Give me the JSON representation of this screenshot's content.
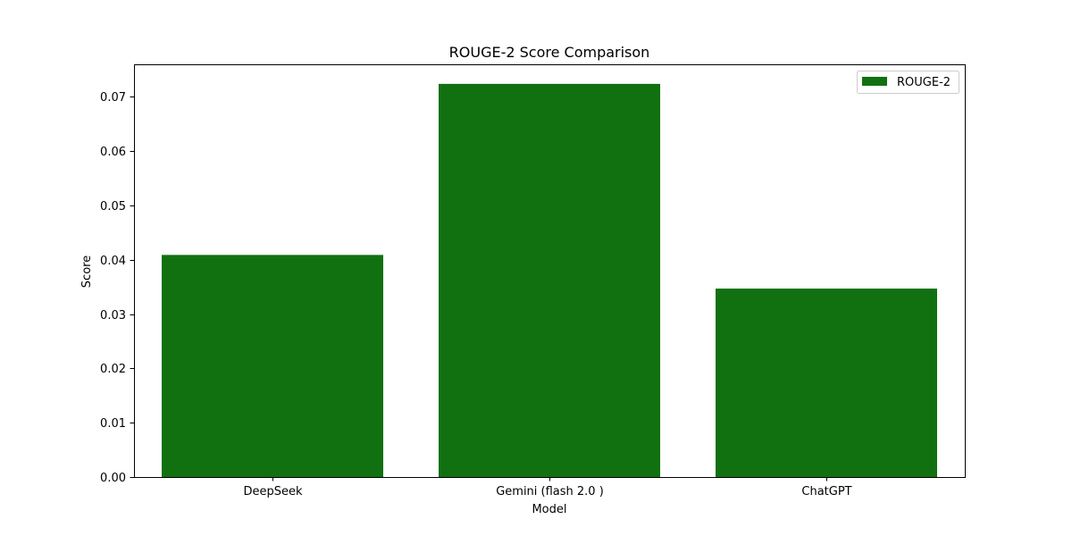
{
  "chart_data": {
    "type": "bar",
    "title": "ROUGE-2 Score Comparison",
    "xlabel": "Model",
    "ylabel": "Score",
    "categories": [
      "DeepSeek",
      "Gemini (flash 2.0 )",
      "ChatGPT"
    ],
    "series": [
      {
        "name": "ROUGE-2",
        "values": [
          0.0409,
          0.0724,
          0.0347
        ],
        "color": "#117111"
      }
    ],
    "yticks": [
      0.0,
      0.01,
      0.02,
      0.03,
      0.04,
      0.05,
      0.06,
      0.07
    ],
    "ytick_labels": [
      "0.00",
      "0.01",
      "0.02",
      "0.03",
      "0.04",
      "0.05",
      "0.06",
      "0.07"
    ],
    "ylim": [
      0,
      0.076
    ],
    "grid": false,
    "legend_position": "top-right"
  }
}
